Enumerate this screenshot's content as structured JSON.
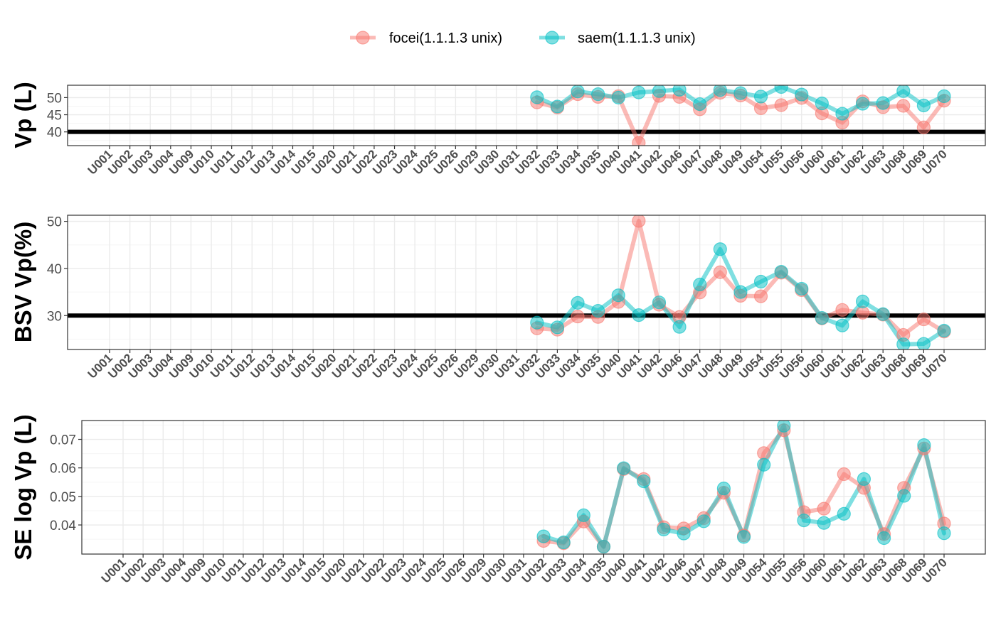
{
  "chart_data": [
    {
      "type": "line",
      "ylabel": "Vp (L)",
      "yticks": [
        40,
        45,
        50
      ],
      "ylim": [
        36,
        53.6
      ],
      "reference_line": 40,
      "grid": true,
      "legend_placement": "top",
      "categories": [
        "U001",
        "U002",
        "U003",
        "U004",
        "U009",
        "U010",
        "U011",
        "U012",
        "U013",
        "U014",
        "U015",
        "U020",
        "U021",
        "U022",
        "U023",
        "U024",
        "U025",
        "U026",
        "U029",
        "U030",
        "U031",
        "U032",
        "U033",
        "U034",
        "U035",
        "U040",
        "U041",
        "U042",
        "U046",
        "U047",
        "U048",
        "U049",
        "U054",
        "U055",
        "U056",
        "U060",
        "U061",
        "U062",
        "U063",
        "U068",
        "U069",
        "U070"
      ],
      "series": [
        {
          "name": "focei(1.1.1.3 unix)",
          "values": [
            null,
            null,
            null,
            null,
            null,
            null,
            null,
            null,
            null,
            null,
            null,
            null,
            null,
            null,
            null,
            null,
            null,
            null,
            null,
            null,
            null,
            48.6,
            47.1,
            51.0,
            50.2,
            50.4,
            36.8,
            50.5,
            50.2,
            46.6,
            51.4,
            50.6,
            46.9,
            47.8,
            49.9,
            45.4,
            42.7,
            48.9,
            47.2,
            47.6,
            41.3,
            49.1
          ]
        },
        {
          "name": "saem(1.1.1.3 unix)",
          "values": [
            null,
            null,
            null,
            null,
            null,
            null,
            null,
            null,
            null,
            null,
            null,
            null,
            null,
            null,
            null,
            null,
            null,
            null,
            null,
            null,
            null,
            50.1,
            47.4,
            51.8,
            51.0,
            50.0,
            51.5,
            51.9,
            52.3,
            48.1,
            52.2,
            51.3,
            50.3,
            53.1,
            50.9,
            48.3,
            45.3,
            48.2,
            48.4,
            51.9,
            47.7,
            50.4
          ]
        }
      ]
    },
    {
      "type": "line",
      "ylabel": "BSV Vp(%)",
      "yticks": [
        30,
        40,
        50
      ],
      "ylim": [
        22.8,
        51.3
      ],
      "reference_line": 30,
      "grid": true,
      "categories": [
        "U001",
        "U002",
        "U003",
        "U004",
        "U009",
        "U010",
        "U011",
        "U012",
        "U013",
        "U014",
        "U015",
        "U020",
        "U021",
        "U022",
        "U023",
        "U024",
        "U025",
        "U026",
        "U029",
        "U030",
        "U031",
        "U032",
        "U033",
        "U034",
        "U035",
        "U040",
        "U041",
        "U042",
        "U046",
        "U047",
        "U048",
        "U049",
        "U054",
        "U055",
        "U056",
        "U060",
        "U061",
        "U062",
        "U063",
        "U068",
        "U069",
        "U070"
      ],
      "series": [
        {
          "name": "focei(1.1.1.3 unix)",
          "values": [
            null,
            null,
            null,
            null,
            null,
            null,
            null,
            null,
            null,
            null,
            null,
            null,
            null,
            null,
            null,
            null,
            null,
            null,
            null,
            null,
            null,
            27.3,
            27.0,
            29.8,
            29.7,
            32.9,
            50.1,
            32.3,
            29.7,
            34.9,
            39.2,
            34.2,
            34.1,
            39.1,
            35.4,
            29.4,
            31.2,
            30.6,
            30.2,
            25.9,
            29.2,
            26.6
          ]
        },
        {
          "name": "saem(1.1.1.3 unix)",
          "values": [
            null,
            null,
            null,
            null,
            null,
            null,
            null,
            null,
            null,
            null,
            null,
            null,
            null,
            null,
            null,
            null,
            null,
            null,
            null,
            null,
            null,
            28.5,
            27.5,
            32.7,
            31.0,
            34.3,
            30.1,
            32.8,
            27.6,
            36.6,
            44.1,
            35.0,
            37.2,
            39.3,
            35.7,
            29.5,
            27.9,
            33.0,
            30.3,
            23.9,
            24.0,
            26.8
          ]
        }
      ]
    },
    {
      "type": "line",
      "ylabel": "SE log Vp (L)",
      "yticks": [
        0.04,
        0.05,
        0.06,
        0.07
      ],
      "ylim": [
        0.0298,
        0.0766
      ],
      "grid": true,
      "categories": [
        "U001",
        "U002",
        "U003",
        "U004",
        "U009",
        "U010",
        "U011",
        "U012",
        "U013",
        "U014",
        "U015",
        "U020",
        "U021",
        "U022",
        "U023",
        "U024",
        "U025",
        "U026",
        "U029",
        "U030",
        "U031",
        "U032",
        "U033",
        "U034",
        "U035",
        "U040",
        "U041",
        "U042",
        "U046",
        "U047",
        "U048",
        "U049",
        "U054",
        "U055",
        "U056",
        "U060",
        "U061",
        "U062",
        "U063",
        "U068",
        "U069",
        "U070"
      ],
      "series": [
        {
          "name": "focei(1.1.1.3 unix)",
          "values": [
            null,
            null,
            null,
            null,
            null,
            null,
            null,
            null,
            null,
            null,
            null,
            null,
            null,
            null,
            null,
            null,
            null,
            null,
            null,
            null,
            null,
            0.0344,
            0.0336,
            0.0412,
            0.0324,
            0.0596,
            0.0561,
            0.0392,
            0.0388,
            0.0424,
            0.0513,
            0.0363,
            0.0652,
            0.0732,
            0.0445,
            0.0457,
            0.0578,
            0.053,
            0.0368,
            0.053,
            0.0668,
            0.0405
          ]
        },
        {
          "name": "saem(1.1.1.3 unix)",
          "values": [
            null,
            null,
            null,
            null,
            null,
            null,
            null,
            null,
            null,
            null,
            null,
            null,
            null,
            null,
            null,
            null,
            null,
            null,
            null,
            null,
            null,
            0.036,
            0.0339,
            0.0434,
            0.0324,
            0.0599,
            0.0553,
            0.0384,
            0.037,
            0.0413,
            0.0528,
            0.0358,
            0.0611,
            0.0748,
            0.0416,
            0.0407,
            0.0439,
            0.0561,
            0.0354,
            0.0502,
            0.068,
            0.0371
          ]
        }
      ]
    }
  ],
  "legend": {
    "items": [
      {
        "label": "focei(1.1.1.3 unix)",
        "color": "#F8766D"
      },
      {
        "label": "saem(1.1.1.3 unix)",
        "color": "#00BFC4"
      }
    ]
  },
  "colors": {
    "panel_border": "#333333",
    "grid_major": "#EBEBEB",
    "grid_minor": "#F5F5F5",
    "tick_text": "#4D4D4D",
    "reference_line": "#000000"
  }
}
